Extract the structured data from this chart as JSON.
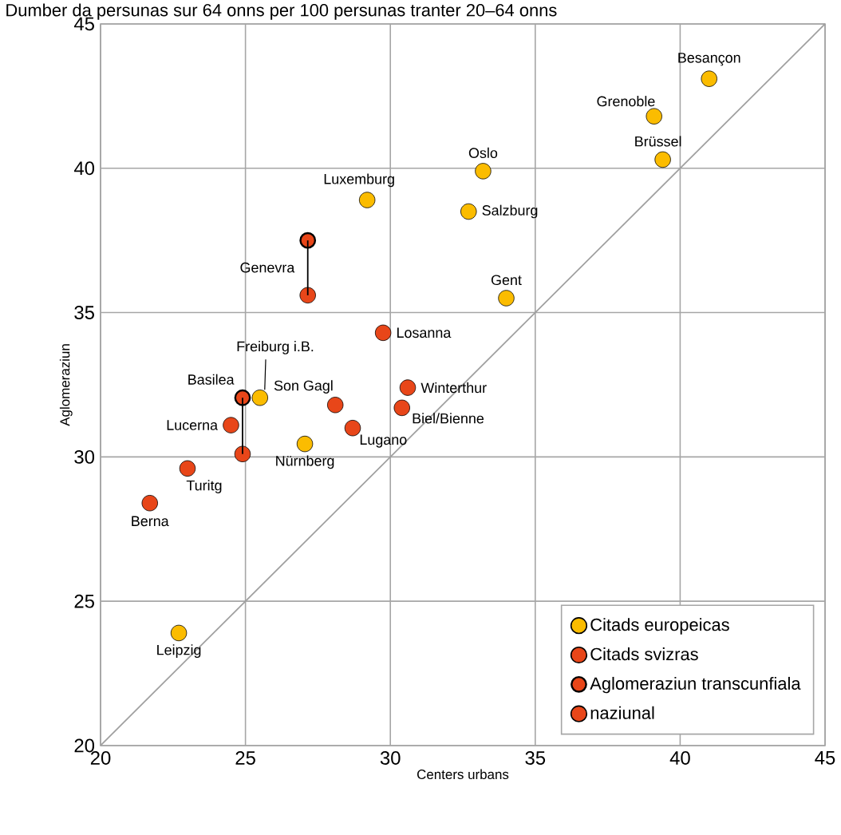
{
  "chart_data": {
    "type": "scatter",
    "title": "Dumber da persunas sur 64 onns per 100 persunas tranter 20–64 onns",
    "xlabel": "Centers urbans",
    "ylabel": "Aglomeraziun",
    "xlim": [
      20,
      45
    ],
    "ylim": [
      20,
      45
    ],
    "xticks": [
      20,
      25,
      30,
      35,
      40,
      45
    ],
    "yticks": [
      20,
      25,
      30,
      35,
      40,
      45
    ],
    "grid": true,
    "legend": "bottom right",
    "series": [
      {
        "name": "Citads europeicas",
        "color": "#fbbc00",
        "x": [
          41.0,
          39.1,
          39.4,
          33.2,
          29.2,
          32.7,
          34.0,
          22.7,
          27.05,
          25.5
        ],
        "values": [
          43.1,
          41.8,
          40.3,
          39.9,
          38.9,
          38.5,
          35.5,
          23.9,
          30.45,
          32.05
        ]
      },
      {
        "name": "Citads svizras",
        "color": "#e84619",
        "x": [
          29.75,
          24.5,
          23.0,
          21.7,
          28.1,
          28.7,
          30.6,
          30.4
        ],
        "values": [
          34.3,
          31.1,
          29.6,
          28.4,
          31.8,
          31.0,
          32.4,
          31.7
        ]
      },
      {
        "name": "Aglomeraziun transcunfiala",
        "color": "#e84619",
        "x": [
          27.15,
          24.9
        ],
        "values": [
          37.5,
          32.05
        ]
      },
      {
        "name": "naziunal",
        "color": "#e84619",
        "x": [
          27.15,
          24.9
        ],
        "values": [
          35.6,
          30.1
        ]
      },
      {
        "type": "line",
        "color": "#a0a0a0",
        "x": [
          20,
          45
        ],
        "values": [
          20,
          45
        ]
      }
    ],
    "annotations": [
      {
        "text": "Besançon",
        "x": 41.0,
        "y": 43.1
      },
      {
        "text": "Grenoble",
        "x": 39.1,
        "y": 41.8
      },
      {
        "text": "Brüssel",
        "x": 39.4,
        "y": 40.3
      },
      {
        "text": "Oslo",
        "x": 33.2,
        "y": 39.9
      },
      {
        "text": "Luxemburg",
        "x": 29.2,
        "y": 38.9
      },
      {
        "text": "Salzburg",
        "x": 32.7,
        "y": 38.5
      },
      {
        "text": "Gent",
        "x": 34.0,
        "y": 35.5
      },
      {
        "text": "Leipzig",
        "x": 22.7,
        "y": 23.9
      },
      {
        "text": "Nürnberg",
        "x": 27.05,
        "y": 30.45
      },
      {
        "text": "Freiburg i.B.",
        "x": 25.5,
        "y": 32.05
      },
      {
        "text": "Losanna",
        "x": 29.75,
        "y": 34.3
      },
      {
        "text": "Lucerna",
        "x": 24.5,
        "y": 31.1
      },
      {
        "text": "Turitg",
        "x": 23.0,
        "y": 29.6
      },
      {
        "text": "Berna",
        "x": 21.7,
        "y": 28.4
      },
      {
        "text": "Son Gagl",
        "x": 28.1,
        "y": 31.8
      },
      {
        "text": "Lugano",
        "x": 28.7,
        "y": 31.0
      },
      {
        "text": "Winterthur",
        "x": 30.6,
        "y": 32.4
      },
      {
        "text": "Biel/Bienne",
        "x": 30.4,
        "y": 31.7
      },
      {
        "text": "Genevra",
        "x": 27.15,
        "y": 37.5
      },
      {
        "text": "Basilea",
        "x": 24.9,
        "y": 32.05
      }
    ]
  }
}
